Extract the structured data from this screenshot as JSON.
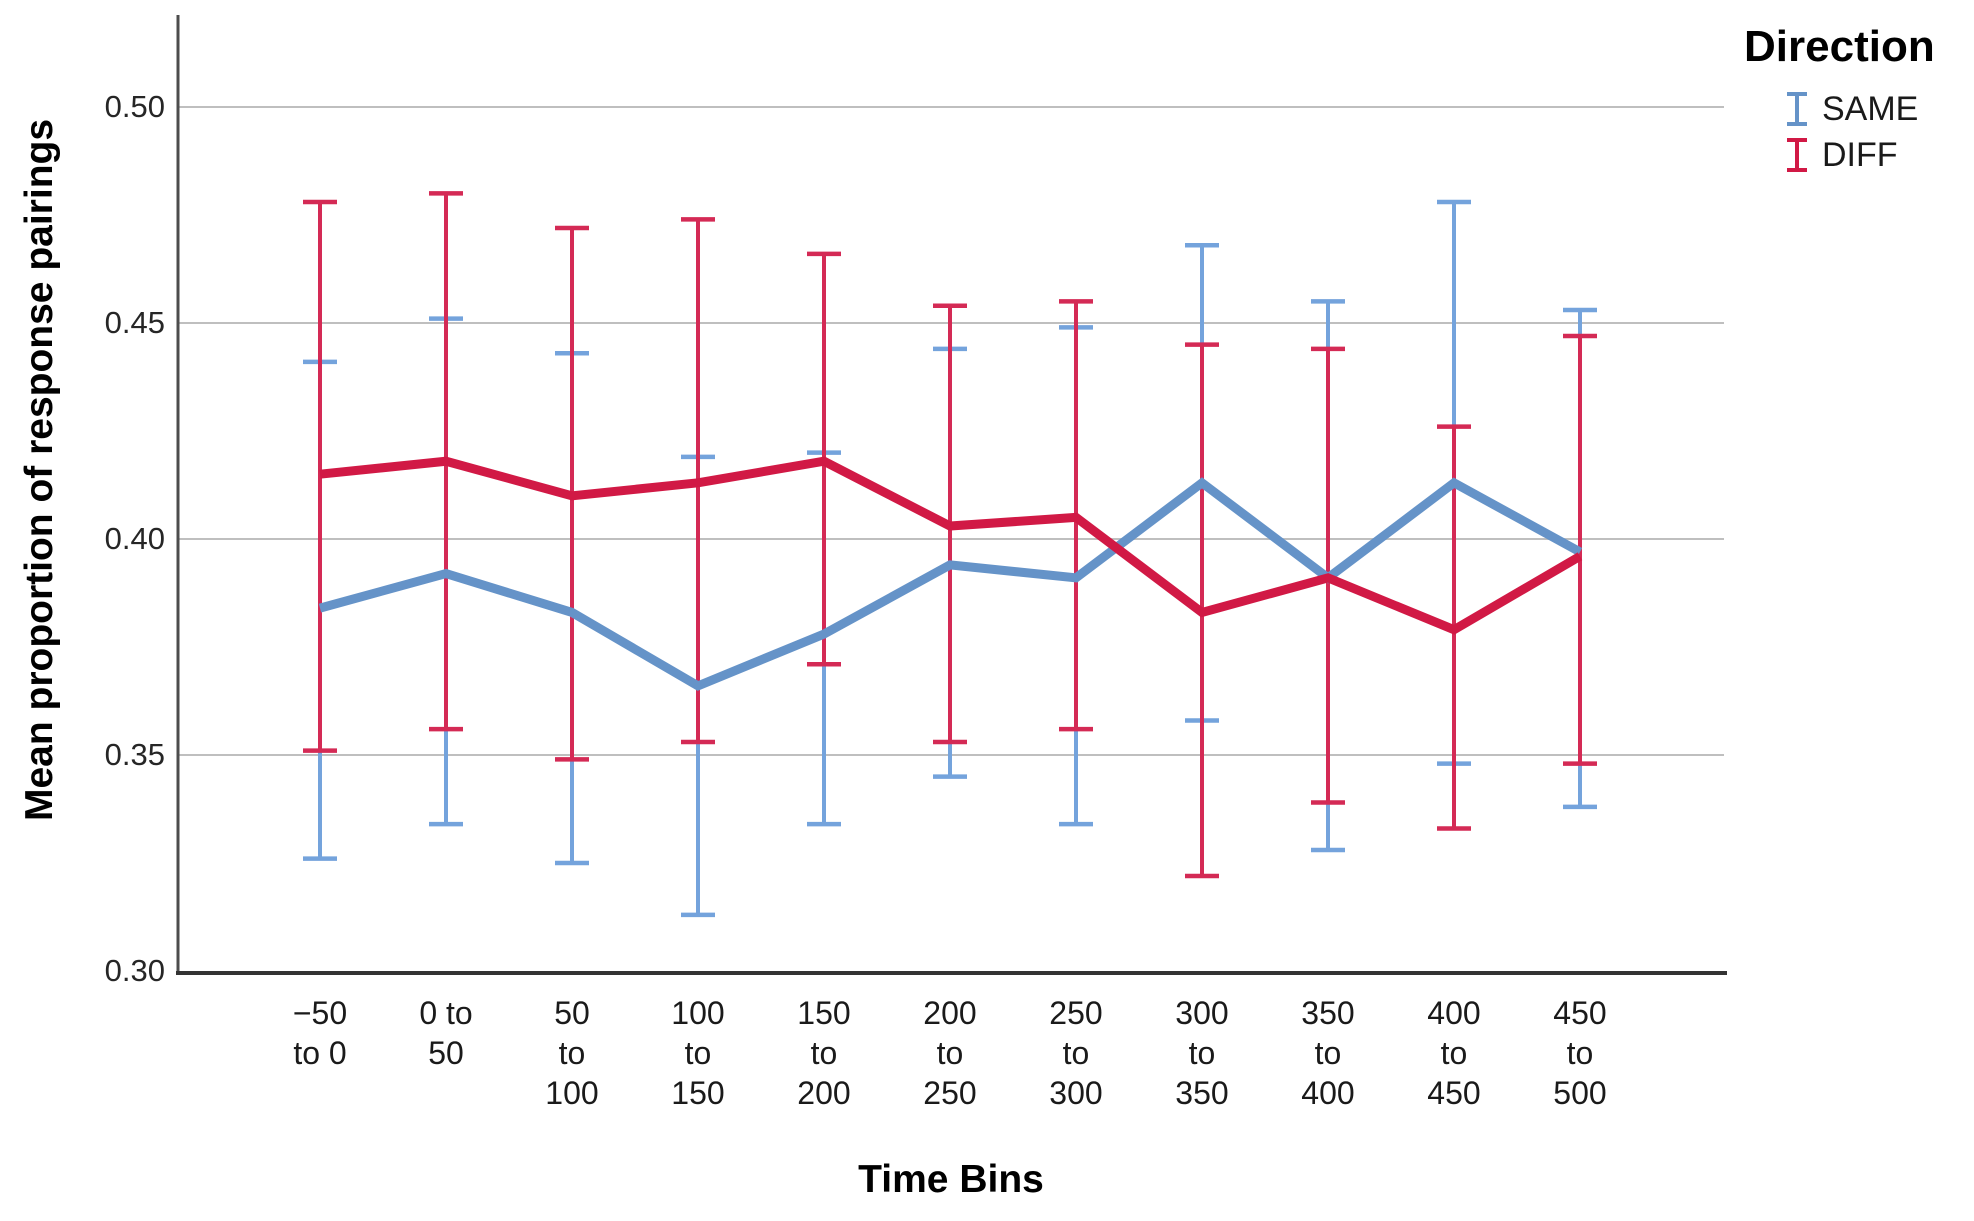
{
  "chart_data": {
    "type": "line",
    "title": "",
    "xlabel": "Time Bins",
    "ylabel": "Mean proportion of response pairings",
    "ylim": [
      0.3,
      0.521
    ],
    "grid": true,
    "legend": {
      "title": "Direction",
      "position": "top-right"
    },
    "yticks": [
      {
        "value": 0.3,
        "label": "0.30"
      },
      {
        "value": 0.35,
        "label": "0.35"
      },
      {
        "value": 0.4,
        "label": "0.40"
      },
      {
        "value": 0.45,
        "label": "0.45"
      },
      {
        "value": 0.5,
        "label": "0.50"
      }
    ],
    "categories": [
      "−50 to 0",
      "0 to 50",
      "50 to 100",
      "100 to 150",
      "150 to 200",
      "200 to 250",
      "250 to 300",
      "300 to 350",
      "350 to 400",
      "400 to 450",
      "450 to 500"
    ],
    "category_tick_lines": [
      [
        "−50",
        "to 0"
      ],
      [
        "0 to",
        "50"
      ],
      [
        "50",
        "to",
        "100"
      ],
      [
        "100",
        "to",
        "150"
      ],
      [
        "150",
        "to",
        "200"
      ],
      [
        "200",
        "to",
        "250"
      ],
      [
        "250",
        "to",
        "300"
      ],
      [
        "300",
        "to",
        "350"
      ],
      [
        "350",
        "to",
        "400"
      ],
      [
        "400",
        "to",
        "450"
      ],
      [
        "450",
        "to",
        "500"
      ]
    ],
    "series": [
      {
        "name": "SAME",
        "color": "#6593C8",
        "error_color": "#74A3DC",
        "values": [
          0.384,
          0.392,
          0.383,
          0.366,
          0.378,
          0.394,
          0.391,
          0.413,
          0.391,
          0.413,
          0.397
        ],
        "err_low": [
          0.326,
          0.334,
          0.325,
          0.313,
          0.334,
          0.345,
          0.334,
          0.358,
          0.328,
          0.348,
          0.338
        ],
        "err_high": [
          0.441,
          0.451,
          0.443,
          0.419,
          0.42,
          0.444,
          0.449,
          0.468,
          0.455,
          0.478,
          0.453
        ]
      },
      {
        "name": "DIFF",
        "color": "#D11945",
        "error_color": "#D42A55",
        "values": [
          0.415,
          0.418,
          0.41,
          0.413,
          0.418,
          0.403,
          0.405,
          0.383,
          0.391,
          0.379,
          0.396
        ],
        "err_low": [
          0.351,
          0.356,
          0.349,
          0.353,
          0.371,
          0.353,
          0.356,
          0.322,
          0.339,
          0.333,
          0.348
        ],
        "err_high": [
          0.478,
          0.48,
          0.472,
          0.474,
          0.466,
          0.454,
          0.455,
          0.445,
          0.444,
          0.426,
          0.447
        ]
      }
    ]
  },
  "colors": {
    "background": "#FFFFFF",
    "gridline": "#BFBFBF",
    "axis_left": "#4D4D4D",
    "axis_bottom": "#333333",
    "text": "#1A1A1A"
  }
}
